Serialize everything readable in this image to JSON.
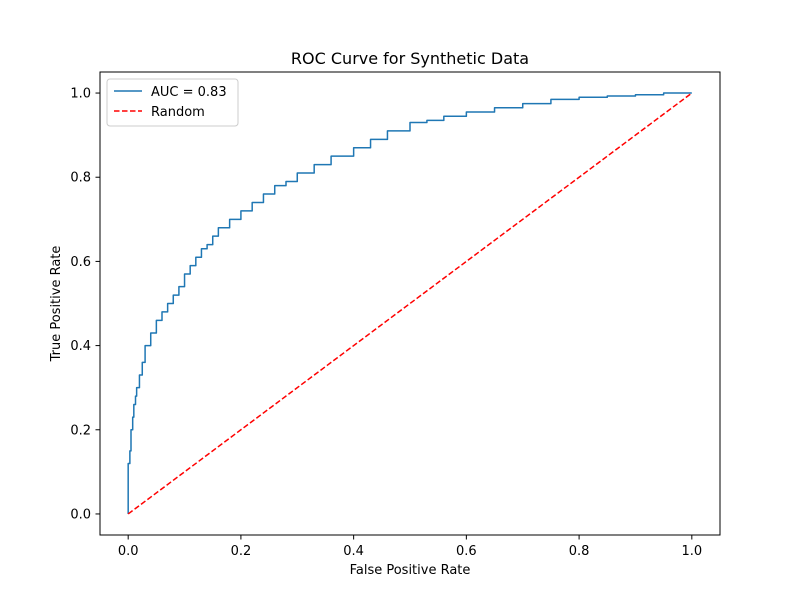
{
  "chart_data": {
    "type": "line",
    "title": "ROC Curve for Synthetic Data",
    "xlabel": "False Positive Rate",
    "ylabel": "True Positive Rate",
    "xlim": [
      -0.05,
      1.05
    ],
    "ylim": [
      -0.05,
      1.05
    ],
    "x_ticks": [
      0.0,
      0.2,
      0.4,
      0.6,
      0.8,
      1.0
    ],
    "y_ticks": [
      0.0,
      0.2,
      0.4,
      0.6,
      0.8,
      1.0
    ],
    "x_tick_labels": [
      "0.0",
      "0.2",
      "0.4",
      "0.6",
      "0.8",
      "1.0"
    ],
    "y_tick_labels": [
      "0.0",
      "0.2",
      "0.4",
      "0.6",
      "0.8",
      "1.0"
    ],
    "grid": false,
    "legend": "upper-left",
    "series": [
      {
        "name": "AUC = 0.83",
        "color": "#1f77b4",
        "style": "solid",
        "x": [
          0.0,
          0.0,
          0.003,
          0.005,
          0.008,
          0.01,
          0.013,
          0.015,
          0.02,
          0.025,
          0.03,
          0.04,
          0.05,
          0.06,
          0.07,
          0.08,
          0.09,
          0.1,
          0.11,
          0.12,
          0.13,
          0.14,
          0.15,
          0.16,
          0.18,
          0.2,
          0.22,
          0.24,
          0.26,
          0.28,
          0.3,
          0.33,
          0.36,
          0.4,
          0.43,
          0.46,
          0.5,
          0.53,
          0.56,
          0.6,
          0.65,
          0.7,
          0.75,
          0.8,
          0.85,
          0.9,
          0.95,
          1.0
        ],
        "y": [
          0.0,
          0.08,
          0.12,
          0.15,
          0.2,
          0.23,
          0.26,
          0.28,
          0.3,
          0.33,
          0.36,
          0.4,
          0.43,
          0.46,
          0.48,
          0.5,
          0.52,
          0.54,
          0.57,
          0.59,
          0.61,
          0.63,
          0.64,
          0.66,
          0.68,
          0.7,
          0.72,
          0.74,
          0.76,
          0.78,
          0.79,
          0.81,
          0.83,
          0.85,
          0.87,
          0.89,
          0.91,
          0.93,
          0.935,
          0.945,
          0.955,
          0.965,
          0.975,
          0.985,
          0.99,
          0.993,
          0.996,
          1.0
        ]
      },
      {
        "name": "Random",
        "color": "#ff0000",
        "style": "dashed",
        "x": [
          0.0,
          1.0
        ],
        "y": [
          0.0,
          1.0
        ]
      }
    ]
  }
}
